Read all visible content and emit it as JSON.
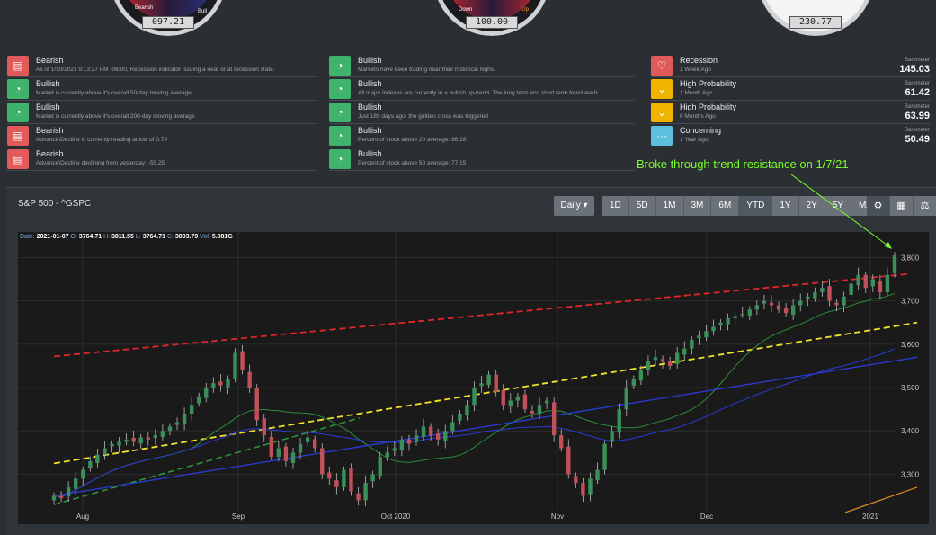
{
  "gauges": [
    {
      "value": "097.21",
      "left_label": "Bearish",
      "right_label": "Bull"
    },
    {
      "value": "100.00",
      "left_label": "Down",
      "right_label": "Up"
    },
    {
      "value": "230.77"
    }
  ],
  "signals_left": [
    {
      "title": "Bearish",
      "desc": "As of 1/10/2021 9:13:27 PM -06:00, Recession indicator issuing a near or at recession state.",
      "type": "bearish"
    },
    {
      "title": "Bullish",
      "desc": "Market is currently above it's overall 50-day moving average",
      "type": "bullish"
    },
    {
      "title": "Bullish",
      "desc": "Market is currently above it's overall 200-day moving average",
      "type": "bullish"
    },
    {
      "title": "Bearish",
      "desc": "Advance\\Decline is currently reading at low of 0.79",
      "type": "bearish"
    },
    {
      "title": "Bearish",
      "desc": "Advance\\Decline declining from yesterday: -55.25",
      "type": "bearish"
    }
  ],
  "signals_mid": [
    {
      "title": "Bullish",
      "desc": "Markets have been trading near their historical highs."
    },
    {
      "title": "Bullish",
      "desc": "All major indexes are currently in a bullish up-trend. The long term and short term trend are b..."
    },
    {
      "title": "Bullish",
      "desc": "Just 185 days ago, the golden cross was triggered"
    },
    {
      "title": "Bullish",
      "desc": "Percent of stock above 20 average: 86.28"
    },
    {
      "title": "Bullish",
      "desc": "Percent of stock above 50 average: 77.15"
    }
  ],
  "signals_right": [
    {
      "title": "Recession",
      "desc": "1 Week Ago",
      "baro_label": "Barometer",
      "baro_value": "145.03",
      "color": "#e05a5a",
      "icon": "thumbs-down-icon"
    },
    {
      "title": "High Probability",
      "desc": "1 Month Ago",
      "baro_label": "Barometer",
      "baro_value": "61.42",
      "color": "#f0b400",
      "icon": "chevron-down-icon"
    },
    {
      "title": "High Probability",
      "desc": "6 Months Ago",
      "baro_label": "Barometer",
      "baro_value": "63.99",
      "color": "#f0b400",
      "icon": "chevron-down-icon"
    },
    {
      "title": "Concerning",
      "desc": "1 Year Ago",
      "baro_label": "Barometer",
      "baro_value": "50.49",
      "color": "#5bc0de",
      "icon": "ellipsis-icon"
    }
  ],
  "annotation": "Broke through trend resistance on 1/7/21",
  "panel": {
    "title": "S&P 500 - ^GSPC",
    "interval": "Daily",
    "ranges": [
      "1D",
      "5D",
      "1M",
      "3M",
      "6M",
      "YTD",
      "1Y",
      "2Y",
      "5Y",
      "MAX"
    ],
    "active_range": "YTD"
  },
  "ohlc": {
    "date_label": "Date:",
    "date": "2021-01-07",
    "o_label": "O:",
    "o": "3764.71",
    "h_label": "H:",
    "h": "3811.55",
    "l_label": "L:",
    "l": "3764.71",
    "c_label": "C:",
    "c": "3803.79",
    "v_label": "Vol:",
    "v": "5.081G"
  },
  "chart_data": {
    "type": "candlestick",
    "x_labels": [
      "Aug",
      "Sep",
      "Oct 2020",
      "Nov",
      "Dec",
      "2021"
    ],
    "y_ticks": [
      "3,300",
      "3,400",
      "3,500",
      "3,600",
      "3,700",
      "3,800"
    ],
    "ylim": [
      3220,
      3830
    ],
    "colors": {
      "up": "#3a8f5a",
      "down": "#c0505a"
    },
    "closes": [
      3250,
      3245,
      3270,
      3290,
      3310,
      3330,
      3345,
      3360,
      3370,
      3375,
      3380,
      3375,
      3385,
      3380,
      3390,
      3400,
      3410,
      3420,
      3440,
      3460,
      3480,
      3500,
      3510,
      3505,
      3520,
      3580,
      3540,
      3500,
      3425,
      3390,
      3340,
      3360,
      3330,
      3350,
      3370,
      3385,
      3360,
      3300,
      3290,
      3270,
      3310,
      3260,
      3240,
      3280,
      3300,
      3340,
      3350,
      3360,
      3380,
      3370,
      3390,
      3410,
      3390,
      3380,
      3400,
      3420,
      3440,
      3460,
      3500,
      3510,
      3530,
      3490,
      3460,
      3470,
      3480,
      3450,
      3440,
      3460,
      3470,
      3390,
      3360,
      3300,
      3280,
      3250,
      3290,
      3310,
      3370,
      3400,
      3450,
      3500,
      3520,
      3540,
      3560,
      3570,
      3560,
      3550,
      3580,
      3590,
      3610,
      3620,
      3630,
      3640,
      3650,
      3660,
      3665,
      3670,
      3680,
      3690,
      3700,
      3690,
      3680,
      3672,
      3690,
      3700,
      3710,
      3720,
      3730,
      3700,
      3690,
      3710,
      3740,
      3760,
      3730,
      3750,
      3720,
      3760,
      3805
    ]
  }
}
